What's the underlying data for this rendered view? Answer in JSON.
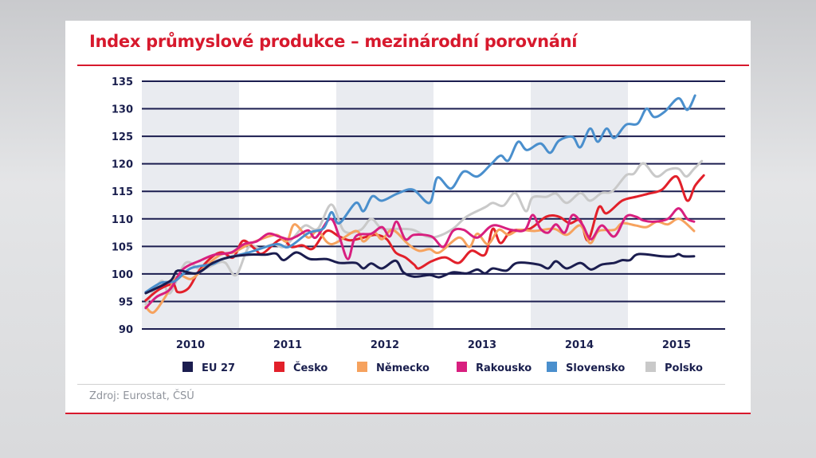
{
  "title": "Index průmyslové produkce – mezinárodní porovnání",
  "source": "Zdroj: Eurostat, ČSÚ",
  "chart_data": {
    "type": "line",
    "title": "Index průmyslové produkce – mezinárodní porovnání",
    "xlabel": "",
    "ylabel": "",
    "ylim": [
      90,
      135
    ],
    "yticks": [
      90,
      95,
      100,
      105,
      110,
      115,
      120,
      125,
      130,
      135
    ],
    "xlim": [
      2010,
      2016
    ],
    "xticks": [
      "2010",
      "2011",
      "2012",
      "2013",
      "2014",
      "2015"
    ],
    "grid": "horizontal",
    "shaded_years": [
      "2010",
      "2012",
      "2014"
    ],
    "legend_position": "bottom",
    "series": [
      {
        "name": "EU 27",
        "color": "#1b1d4f",
        "points": [
          [
            2010.04,
            96.5
          ],
          [
            2010.29,
            98.7
          ],
          [
            2010.37,
            100.6
          ],
          [
            2010.56,
            100.1
          ],
          [
            2010.73,
            102
          ],
          [
            2010.89,
            103
          ],
          [
            2011.1,
            103.5
          ],
          [
            2011.27,
            103.5
          ],
          [
            2011.38,
            103.7
          ],
          [
            2011.46,
            102.5
          ],
          [
            2011.59,
            103.9
          ],
          [
            2011.73,
            102.7
          ],
          [
            2011.9,
            102.7
          ],
          [
            2012.03,
            102
          ],
          [
            2012.2,
            102
          ],
          [
            2012.28,
            101
          ],
          [
            2012.36,
            101.9
          ],
          [
            2012.47,
            101
          ],
          [
            2012.61,
            102.4
          ],
          [
            2012.69,
            100.3
          ],
          [
            2012.8,
            99.5
          ],
          [
            2012.96,
            99.8
          ],
          [
            2013.06,
            99.4
          ],
          [
            2013.2,
            100.3
          ],
          [
            2013.34,
            100.1
          ],
          [
            2013.45,
            100.8
          ],
          [
            2013.53,
            100.1
          ],
          [
            2013.61,
            101
          ],
          [
            2013.75,
            100.6
          ],
          [
            2013.86,
            102
          ],
          [
            2014.08,
            101.7
          ],
          [
            2014.18,
            101
          ],
          [
            2014.26,
            102.3
          ],
          [
            2014.37,
            101
          ],
          [
            2014.51,
            102
          ],
          [
            2014.62,
            100.8
          ],
          [
            2014.73,
            101.7
          ],
          [
            2014.86,
            102
          ],
          [
            2014.94,
            102.5
          ],
          [
            2015.02,
            102.5
          ],
          [
            2015.11,
            103.6
          ],
          [
            2015.35,
            103.2
          ],
          [
            2015.47,
            103.2
          ],
          [
            2015.52,
            103.6
          ],
          [
            2015.57,
            103.2
          ],
          [
            2015.68,
            103.2
          ]
        ]
      },
      {
        "name": "Česko",
        "color": "#e2202a",
        "points": [
          [
            2010.04,
            95.2
          ],
          [
            2010.18,
            97.2
          ],
          [
            2010.32,
            98.1
          ],
          [
            2010.37,
            96.7
          ],
          [
            2010.48,
            97.4
          ],
          [
            2010.59,
            100.6
          ],
          [
            2010.73,
            103.2
          ],
          [
            2010.83,
            103.9
          ],
          [
            2010.94,
            103
          ],
          [
            2011.04,
            106
          ],
          [
            2011.16,
            104.6
          ],
          [
            2011.24,
            103.7
          ],
          [
            2011.43,
            106.3
          ],
          [
            2011.54,
            104.9
          ],
          [
            2011.65,
            105.2
          ],
          [
            2011.76,
            104.6
          ],
          [
            2011.9,
            107.8
          ],
          [
            2012.03,
            106.8
          ],
          [
            2012.14,
            106.1
          ],
          [
            2012.28,
            106.6
          ],
          [
            2012.41,
            107.1
          ],
          [
            2012.52,
            106.3
          ],
          [
            2012.61,
            103.9
          ],
          [
            2012.71,
            103
          ],
          [
            2012.8,
            101.7
          ],
          [
            2012.85,
            101
          ],
          [
            2012.98,
            102.3
          ],
          [
            2013.12,
            103
          ],
          [
            2013.26,
            102
          ],
          [
            2013.39,
            104.2
          ],
          [
            2013.53,
            103.5
          ],
          [
            2013.61,
            108.2
          ],
          [
            2013.69,
            105.6
          ],
          [
            2013.8,
            107.8
          ],
          [
            2013.99,
            108.2
          ],
          [
            2014.16,
            110.4
          ],
          [
            2014.29,
            110.4
          ],
          [
            2014.4,
            109.2
          ],
          [
            2014.51,
            109.7
          ],
          [
            2014.59,
            106.1
          ],
          [
            2014.7,
            112.1
          ],
          [
            2014.78,
            111
          ],
          [
            2014.94,
            113.3
          ],
          [
            2015.08,
            114
          ],
          [
            2015.22,
            114.6
          ],
          [
            2015.35,
            115.3
          ],
          [
            2015.5,
            117.7
          ],
          [
            2015.61,
            113.3
          ],
          [
            2015.69,
            116
          ],
          [
            2015.78,
            117.9
          ]
        ]
      },
      {
        "name": "Německo",
        "color": "#f6a25e",
        "points": [
          [
            2010.04,
            94
          ],
          [
            2010.12,
            93
          ],
          [
            2010.24,
            95.8
          ],
          [
            2010.37,
            99.6
          ],
          [
            2010.51,
            99.1
          ],
          [
            2010.65,
            101.3
          ],
          [
            2010.81,
            103.5
          ],
          [
            2010.94,
            103.9
          ],
          [
            2011.05,
            104.9
          ],
          [
            2011.18,
            106
          ],
          [
            2011.38,
            107.1
          ],
          [
            2011.49,
            105.9
          ],
          [
            2011.57,
            109
          ],
          [
            2011.71,
            106.6
          ],
          [
            2011.81,
            107.8
          ],
          [
            2011.95,
            105.4
          ],
          [
            2012.2,
            107.8
          ],
          [
            2012.28,
            105.9
          ],
          [
            2012.39,
            107.5
          ],
          [
            2012.47,
            106.3
          ],
          [
            2012.58,
            108
          ],
          [
            2012.74,
            105.4
          ],
          [
            2012.85,
            104.2
          ],
          [
            2012.96,
            104.5
          ],
          [
            2013.06,
            103.9
          ],
          [
            2013.26,
            106.6
          ],
          [
            2013.37,
            104.9
          ],
          [
            2013.45,
            107.3
          ],
          [
            2013.56,
            105.4
          ],
          [
            2013.67,
            108
          ],
          [
            2013.77,
            107.1
          ],
          [
            2013.88,
            108
          ],
          [
            2014.04,
            107.8
          ],
          [
            2014.24,
            108.2
          ],
          [
            2014.37,
            107.1
          ],
          [
            2014.51,
            108.8
          ],
          [
            2014.61,
            105.6
          ],
          [
            2014.7,
            107.8
          ],
          [
            2014.86,
            108
          ],
          [
            2014.94,
            109.2
          ],
          [
            2015.08,
            108.8
          ],
          [
            2015.19,
            108.5
          ],
          [
            2015.3,
            109.5
          ],
          [
            2015.41,
            109
          ],
          [
            2015.53,
            110
          ],
          [
            2015.68,
            107.8
          ]
        ]
      },
      {
        "name": "Rakousko",
        "color": "#d81f7f",
        "points": [
          [
            2010.04,
            93.8
          ],
          [
            2010.15,
            95.8
          ],
          [
            2010.29,
            97.2
          ],
          [
            2010.42,
            100.8
          ],
          [
            2010.61,
            102.5
          ],
          [
            2010.75,
            103.5
          ],
          [
            2010.92,
            103.9
          ],
          [
            2011.05,
            105.4
          ],
          [
            2011.18,
            105.9
          ],
          [
            2011.3,
            107.3
          ],
          [
            2011.41,
            106.8
          ],
          [
            2011.51,
            106.3
          ],
          [
            2011.59,
            106.8
          ],
          [
            2011.71,
            107.9
          ],
          [
            2011.79,
            106.6
          ],
          [
            2011.94,
            110
          ],
          [
            2012.03,
            106.8
          ],
          [
            2012.12,
            102.7
          ],
          [
            2012.2,
            106.8
          ],
          [
            2012.36,
            107.3
          ],
          [
            2012.47,
            108.5
          ],
          [
            2012.55,
            106.8
          ],
          [
            2012.62,
            109.5
          ],
          [
            2012.71,
            106.3
          ],
          [
            2012.8,
            107.1
          ],
          [
            2012.98,
            106.8
          ],
          [
            2013.1,
            104.9
          ],
          [
            2013.2,
            107.8
          ],
          [
            2013.31,
            108
          ],
          [
            2013.45,
            106.6
          ],
          [
            2013.61,
            108.8
          ],
          [
            2013.8,
            108
          ],
          [
            2013.94,
            108
          ],
          [
            2014.02,
            110.7
          ],
          [
            2014.1,
            108.2
          ],
          [
            2014.18,
            107.5
          ],
          [
            2014.26,
            109
          ],
          [
            2014.35,
            107.5
          ],
          [
            2014.43,
            110.7
          ],
          [
            2014.53,
            109
          ],
          [
            2014.62,
            106.3
          ],
          [
            2014.73,
            108.8
          ],
          [
            2014.86,
            106.8
          ],
          [
            2014.98,
            110.4
          ],
          [
            2015.08,
            110.4
          ],
          [
            2015.16,
            109.7
          ],
          [
            2015.27,
            109.5
          ],
          [
            2015.41,
            110
          ],
          [
            2015.52,
            111.9
          ],
          [
            2015.61,
            110
          ],
          [
            2015.68,
            109.5
          ]
        ]
      },
      {
        "name": "Slovensko",
        "color": "#4a8fcd",
        "points": [
          [
            2010.04,
            96.7
          ],
          [
            2010.2,
            98.4
          ],
          [
            2010.34,
            98.7
          ],
          [
            2010.5,
            101
          ],
          [
            2010.73,
            101.8
          ],
          [
            2010.83,
            102.7
          ],
          [
            2011.1,
            103.9
          ],
          [
            2011.38,
            105.4
          ],
          [
            2011.51,
            104.9
          ],
          [
            2011.71,
            107.4
          ],
          [
            2011.87,
            108.3
          ],
          [
            2011.95,
            111.2
          ],
          [
            2012.03,
            109.2
          ],
          [
            2012.2,
            112.9
          ],
          [
            2012.28,
            111.4
          ],
          [
            2012.37,
            114.1
          ],
          [
            2012.47,
            113.3
          ],
          [
            2012.63,
            114.6
          ],
          [
            2012.79,
            115.3
          ],
          [
            2012.96,
            112.9
          ],
          [
            2013.04,
            117.5
          ],
          [
            2013.18,
            115.5
          ],
          [
            2013.31,
            118.6
          ],
          [
            2013.45,
            117.7
          ],
          [
            2013.59,
            119.9
          ],
          [
            2013.69,
            121.5
          ],
          [
            2013.77,
            120.6
          ],
          [
            2013.87,
            124
          ],
          [
            2013.96,
            122.5
          ],
          [
            2014.1,
            123.7
          ],
          [
            2014.2,
            122
          ],
          [
            2014.29,
            124.2
          ],
          [
            2014.43,
            124.9
          ],
          [
            2014.51,
            123
          ],
          [
            2014.61,
            126.4
          ],
          [
            2014.69,
            124
          ],
          [
            2014.78,
            126.4
          ],
          [
            2014.86,
            124.7
          ],
          [
            2014.98,
            127.1
          ],
          [
            2015.1,
            127.3
          ],
          [
            2015.19,
            130
          ],
          [
            2015.27,
            128.5
          ],
          [
            2015.38,
            129.5
          ],
          [
            2015.52,
            131.9
          ],
          [
            2015.61,
            129.8
          ],
          [
            2015.69,
            132.4
          ]
        ]
      },
      {
        "name": "Polsko",
        "color": "#c9c9c9",
        "points": [
          [
            2010.04,
            94.5
          ],
          [
            2010.2,
            98.7
          ],
          [
            2010.29,
            96.5
          ],
          [
            2010.45,
            102
          ],
          [
            2010.61,
            100.8
          ],
          [
            2010.78,
            102
          ],
          [
            2010.86,
            102
          ],
          [
            2010.97,
            99.8
          ],
          [
            2011.1,
            104.9
          ],
          [
            2011.22,
            104.6
          ],
          [
            2011.35,
            105.4
          ],
          [
            2011.46,
            104.9
          ],
          [
            2011.57,
            106.8
          ],
          [
            2011.68,
            108.8
          ],
          [
            2011.81,
            108.2
          ],
          [
            2011.95,
            112.6
          ],
          [
            2012.08,
            107.8
          ],
          [
            2012.25,
            108
          ],
          [
            2012.36,
            110
          ],
          [
            2012.47,
            108.2
          ],
          [
            2012.63,
            108.2
          ],
          [
            2012.79,
            108
          ],
          [
            2012.93,
            106.8
          ],
          [
            2013.04,
            106.8
          ],
          [
            2013.2,
            108.2
          ],
          [
            2013.34,
            110.4
          ],
          [
            2013.53,
            112.1
          ],
          [
            2013.61,
            112.9
          ],
          [
            2013.72,
            112.4
          ],
          [
            2013.84,
            114.7
          ],
          [
            2013.95,
            111.4
          ],
          [
            2014.02,
            113.9
          ],
          [
            2014.16,
            114
          ],
          [
            2014.26,
            114.6
          ],
          [
            2014.37,
            112.9
          ],
          [
            2014.51,
            114.7
          ],
          [
            2014.61,
            113.3
          ],
          [
            2014.73,
            114.7
          ],
          [
            2014.84,
            115
          ],
          [
            2014.98,
            117.9
          ],
          [
            2015.06,
            118.2
          ],
          [
            2015.16,
            120.1
          ],
          [
            2015.29,
            117.7
          ],
          [
            2015.41,
            118.9
          ],
          [
            2015.52,
            119.1
          ],
          [
            2015.6,
            117.7
          ],
          [
            2015.68,
            119.1
          ],
          [
            2015.76,
            120.5
          ]
        ]
      }
    ]
  }
}
